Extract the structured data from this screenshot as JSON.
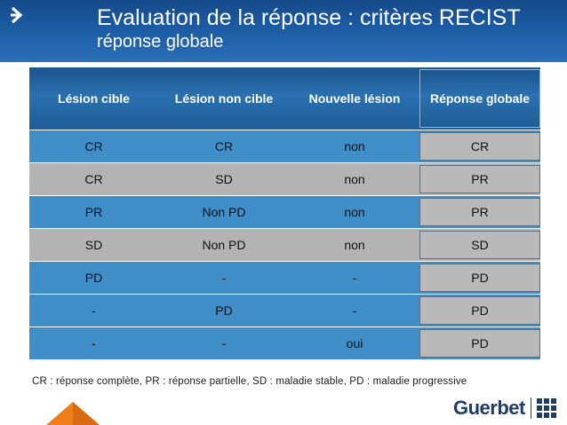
{
  "header": {
    "title": "Evaluation de la réponse : critères RECIST",
    "subtitle": "réponse globale"
  },
  "table": {
    "headers": [
      "Lésion cible",
      "Lésion non cible",
      "Nouvelle lésion",
      "Réponse globale"
    ],
    "rows": [
      [
        "CR",
        "CR",
        "non",
        "CR"
      ],
      [
        "CR",
        "SD",
        "non",
        "PR"
      ],
      [
        "PR",
        "Non PD",
        "non",
        "PR"
      ],
      [
        "SD",
        "Non PD",
        "non",
        "SD"
      ],
      [
        "PD",
        "-",
        "-",
        "PD"
      ],
      [
        "-",
        "PD",
        "-",
        "PD"
      ],
      [
        "-",
        "-",
        "oui",
        "PD"
      ]
    ]
  },
  "legend": "CR : réponse complète, PR : réponse partielle, SD : maladie stable, PD : maladie progressive",
  "brand": {
    "name": "Guerbet"
  },
  "colors": {
    "header_blue": "#1d5fa8",
    "row_blue": "#3f8ec8",
    "row_grey": "#b3b3b3",
    "accent_orange": "#ef7d1a"
  }
}
